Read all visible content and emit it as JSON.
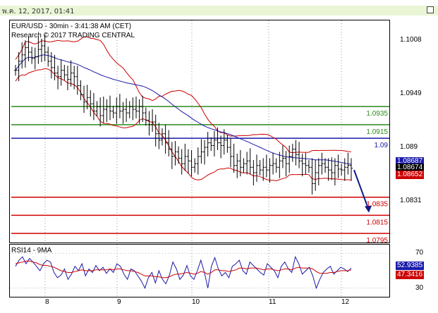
{
  "window": {
    "date_strip": "พ.ค. 12, 2017, 01:41"
  },
  "price_header": {
    "line1": "EUR/USD - 30min - 3:41:38 AM (CET)",
    "line2": "Research © 2017 TRADING CENTRAL"
  },
  "rsi_header": "RSI14 - 9MA",
  "colors": {
    "candle": "#000000",
    "bollinger": "#cc0000",
    "ma": "#1a1aa8",
    "resistance": "#2b8a1a",
    "pivot": "#1a1aa8",
    "support": "#d00000",
    "arrow": "#0a1a8a",
    "rsi": "#1a1aa8",
    "rsi_ma": "#cc0000"
  },
  "chart_data": [
    {
      "type": "candlestick",
      "title": "EUR/USD - 30min",
      "ylim": [
        1.0785,
        1.103
      ],
      "y_ticks": [
        1.1008,
        1.0949,
        1.089,
        1.0831
      ],
      "x_ticks": [
        "8",
        "9",
        "10",
        "11",
        "12"
      ],
      "levels": [
        {
          "name": "resistance",
          "value": 1.0935,
          "label": "1.0935"
        },
        {
          "name": "resistance",
          "value": 1.0915,
          "label": "1.0915"
        },
        {
          "name": "pivot",
          "value": 1.09,
          "label": "1.09"
        },
        {
          "name": "support",
          "value": 1.0835,
          "label": "1.0835"
        },
        {
          "name": "support",
          "value": 1.0815,
          "label": "1.0815"
        },
        {
          "name": "support",
          "value": 1.0795,
          "label": "1.0795"
        }
      ],
      "price_markers": [
        {
          "value": "1.08687",
          "color": "#1a1aa8"
        },
        {
          "value": "1.08674",
          "color": "#000000"
        },
        {
          "value": "1.08652",
          "color": "#cc0000"
        }
      ],
      "series_close": [
        1.0975,
        1.0985,
        1.0992,
        1.1,
        1.0995,
        1.0988,
        1.099,
        1.0998,
        1.1002,
        1.0995,
        1.0985,
        1.0978,
        1.0972,
        1.0968,
        1.0975,
        1.097,
        1.0965,
        1.0972,
        1.0968,
        1.0958,
        1.0948,
        1.094,
        1.0945,
        1.0938,
        1.093,
        1.0935,
        1.0925,
        1.0932,
        1.0935,
        1.093,
        1.0928,
        1.0935,
        1.093,
        1.0932,
        1.0928,
        1.0935,
        1.0932,
        1.093,
        1.0935,
        1.0928,
        1.092,
        1.0915,
        1.0918,
        1.0905,
        1.0898,
        1.0905,
        1.0895,
        1.0888,
        1.088,
        1.0885,
        1.0878,
        1.0872,
        1.088,
        1.0875,
        1.0868,
        1.0872,
        1.088,
        1.0885,
        1.089,
        1.0895,
        1.0892,
        1.0898,
        1.0895,
        1.0892,
        1.0898,
        1.089,
        1.088,
        1.087,
        1.0875,
        1.0868,
        1.0872,
        1.0875,
        1.0868,
        1.0862,
        1.087,
        1.0865,
        1.0868,
        1.0865,
        1.087,
        1.0872,
        1.0868,
        1.0875,
        1.0878,
        1.0872,
        1.088,
        1.0888,
        1.0882,
        1.0875,
        1.0872,
        1.087,
        1.0868,
        1.085,
        1.0862,
        1.087,
        1.0872,
        1.0868,
        1.0865,
        1.0862,
        1.087,
        1.0866,
        1.0865,
        1.0868,
        1.087,
        1.0867
      ],
      "forecast_arrow": {
        "from": 1.0865,
        "to": 1.0818
      }
    },
    {
      "type": "line",
      "title": "RSI14 - 9MA",
      "ylim": [
        20,
        80
      ],
      "y_ticks": [
        70,
        30
      ],
      "series": [
        {
          "name": "RSI14",
          "values": [
            55,
            62,
            66,
            58,
            64,
            60,
            55,
            50,
            58,
            62,
            60,
            48,
            42,
            45,
            52,
            40,
            46,
            55,
            50,
            58,
            44,
            52,
            48,
            56,
            50,
            54,
            47,
            52,
            48,
            58,
            55,
            46,
            40,
            52,
            50,
            44,
            38,
            30,
            42,
            48,
            36,
            50,
            40,
            35,
            45,
            60,
            52,
            40,
            45,
            56,
            44,
            40,
            50,
            62,
            48,
            30,
            55,
            65,
            52,
            44,
            48,
            42,
            55,
            58,
            62,
            50,
            46,
            60,
            56,
            52,
            48,
            45,
            58,
            54,
            50,
            42,
            55,
            60,
            52,
            48,
            66,
            58,
            46,
            50,
            54,
            44,
            30,
            40,
            48,
            52,
            55,
            46,
            50,
            54,
            52,
            49,
            53
          ]
        },
        {
          "name": "9MA",
          "values": [
            58,
            59,
            60,
            61,
            61,
            60,
            59,
            57,
            56,
            56,
            55,
            54,
            52,
            50,
            49,
            48,
            48,
            49,
            50,
            51,
            50,
            50,
            50,
            51,
            51,
            51,
            51,
            52,
            51,
            52,
            52,
            51,
            50,
            50,
            49,
            48,
            46,
            44,
            44,
            44,
            43,
            43,
            42,
            42,
            43,
            45,
            46,
            46,
            47,
            48,
            47,
            46,
            47,
            49,
            48,
            46,
            48,
            51,
            51,
            50,
            50,
            49,
            50,
            51,
            53,
            53,
            52,
            53,
            53,
            53,
            52,
            51,
            52,
            52,
            51,
            50,
            51,
            52,
            52,
            51,
            53,
            54,
            53,
            53,
            53,
            52,
            49,
            47,
            47,
            47,
            48,
            48,
            49,
            50,
            50,
            50,
            51
          ]
        }
      ],
      "value_markers": [
        {
          "value": "52.9385",
          "color": "#1a1aa8"
        },
        {
          "value": "47.3416",
          "color": "#cc0000"
        }
      ]
    }
  ]
}
